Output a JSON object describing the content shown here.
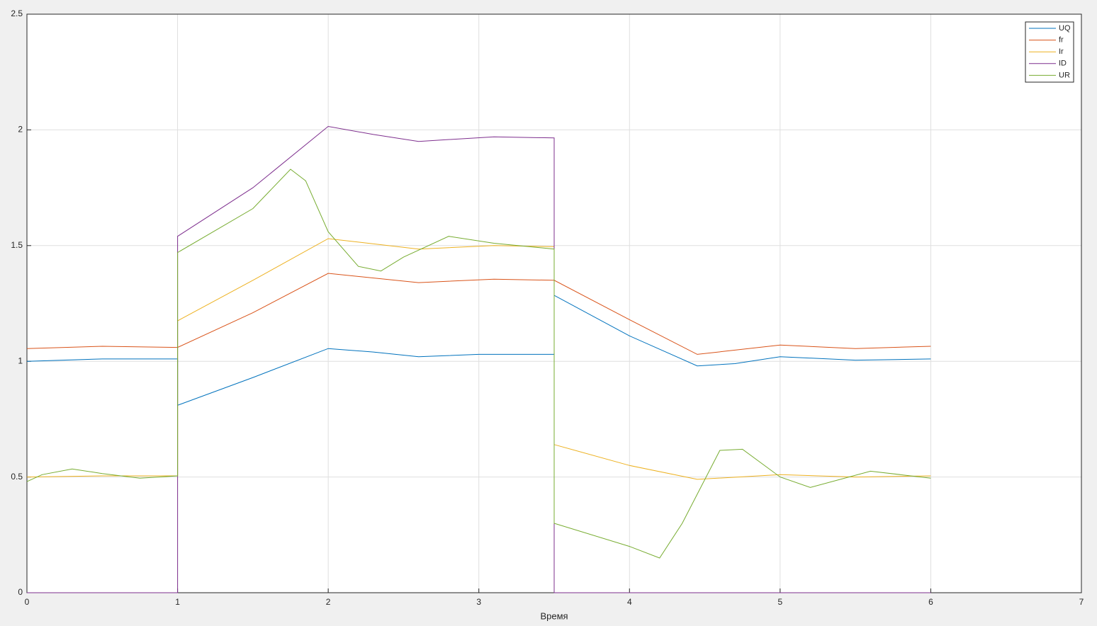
{
  "chart_data": {
    "type": "line",
    "xlabel": "Время",
    "xlim": [
      0,
      7
    ],
    "xticks": [
      0,
      1,
      2,
      3,
      4,
      5,
      6,
      7
    ],
    "ylim": [
      0,
      2.5
    ],
    "yticks": [
      0,
      0.5,
      1,
      1.5,
      2,
      2.5
    ],
    "grid": true,
    "legend": "northeast",
    "series": [
      {
        "name": "UQ",
        "color": "#0072bd",
        "x": [
          0,
          0.5,
          1,
          1,
          1.5,
          2,
          2.3,
          2.6,
          3.0,
          3.5,
          3.5,
          4,
          4.45,
          4.7,
          5,
          5.5,
          6
        ],
        "values": [
          1.0,
          1.01,
          1.01,
          0.81,
          0.93,
          1.055,
          1.04,
          1.02,
          1.03,
          1.03,
          1.285,
          1.11,
          0.98,
          0.99,
          1.02,
          1.005,
          1.01
        ]
      },
      {
        "name": "fr",
        "color": "#d95319",
        "x": [
          0,
          0.5,
          1,
          1.5,
          2,
          2.6,
          3.1,
          3.5,
          4,
          4.45,
          5,
          5.5,
          6
        ],
        "values": [
          1.055,
          1.065,
          1.06,
          1.21,
          1.38,
          1.34,
          1.355,
          1.35,
          1.18,
          1.03,
          1.07,
          1.055,
          1.065
        ]
      },
      {
        "name": "Ir",
        "color": "#edb120",
        "x": [
          0,
          0.5,
          1,
          1,
          1.5,
          2,
          2.6,
          3.1,
          3.5,
          3.5,
          4,
          4.45,
          5,
          5.5,
          6
        ],
        "values": [
          0.5,
          0.505,
          0.505,
          1.175,
          1.35,
          1.53,
          1.485,
          1.5,
          1.495,
          0.64,
          0.55,
          0.49,
          0.51,
          0.5,
          0.505
        ]
      },
      {
        "name": "ID",
        "color": "#7e2f8e",
        "x": [
          0,
          1,
          1,
          1.5,
          2,
          2.3,
          2.6,
          3.1,
          3.5,
          3.5,
          6
        ],
        "values": [
          0,
          0,
          1.54,
          1.75,
          2.015,
          1.98,
          1.95,
          1.97,
          1.965,
          0,
          0
        ]
      },
      {
        "name": "UR",
        "color": "#77ac30",
        "x": [
          0,
          0.1,
          0.3,
          0.5,
          0.75,
          1,
          1,
          1.5,
          1.75,
          1.85,
          2,
          2.2,
          2.35,
          2.5,
          2.8,
          3.1,
          3.5,
          3.5,
          4,
          4.2,
          4.35,
          4.6,
          4.75,
          5,
          5.2,
          5.6,
          6
        ],
        "values": [
          0.48,
          0.51,
          0.535,
          0.515,
          0.495,
          0.505,
          1.47,
          1.66,
          1.83,
          1.78,
          1.56,
          1.41,
          1.39,
          1.45,
          1.54,
          1.51,
          1.485,
          0.3,
          0.2,
          0.15,
          0.3,
          0.615,
          0.62,
          0.5,
          0.455,
          0.525,
          0.495
        ]
      }
    ]
  }
}
